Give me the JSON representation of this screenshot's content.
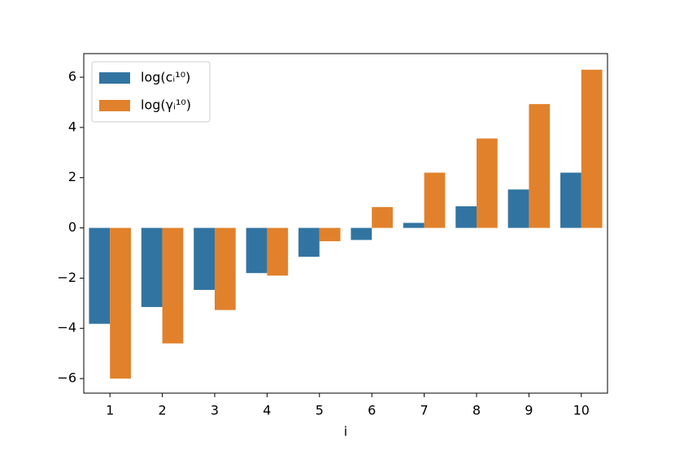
{
  "chart_data": {
    "type": "bar",
    "x_label": "i",
    "categories": [
      "1",
      "2",
      "3",
      "4",
      "5",
      "6",
      "7",
      "8",
      "9",
      "10"
    ],
    "series": [
      {
        "name": "log(cᵢ¹⁰)",
        "color": "#3274a1",
        "values": [
          -3.82,
          -3.15,
          -2.47,
          -1.8,
          -1.15,
          -0.48,
          0.2,
          0.86,
          1.53,
          2.2
        ]
      },
      {
        "name": "log(γᵢ¹⁰)",
        "color": "#e1812c",
        "values": [
          -6.0,
          -4.6,
          -3.27,
          -1.9,
          -0.53,
          0.83,
          2.2,
          3.56,
          4.93,
          6.3
        ]
      }
    ],
    "ylim": [
      -6.58,
      6.94
    ],
    "yticks": [
      {
        "value": -6,
        "label": "−6"
      },
      {
        "value": -4,
        "label": "−4"
      },
      {
        "value": -2,
        "label": "−2"
      },
      0,
      2,
      4,
      6
    ],
    "legend": "upper left"
  }
}
